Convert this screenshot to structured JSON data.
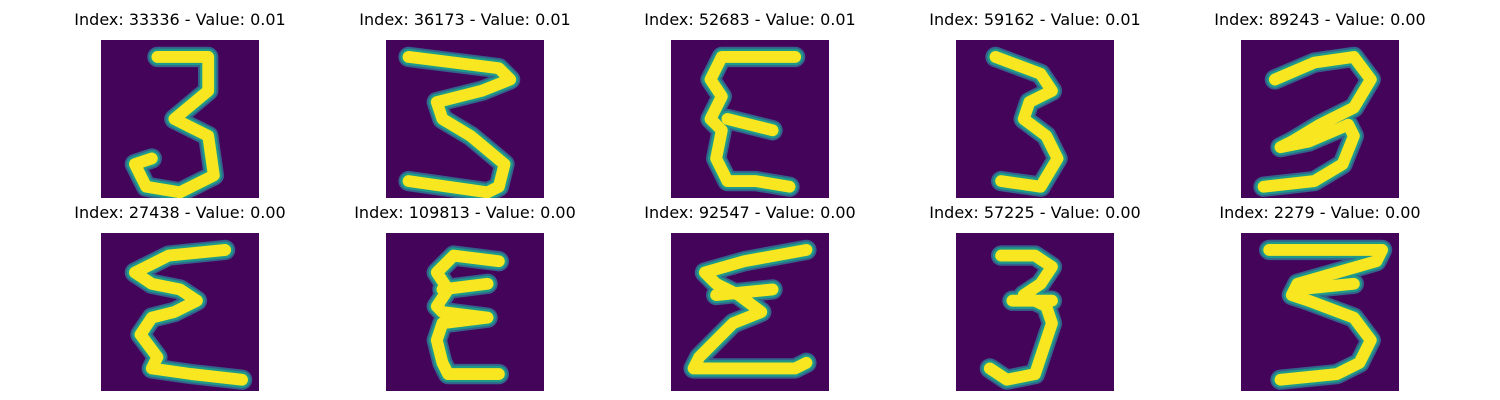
{
  "colors": {
    "background": "#44045a",
    "stroke_high": "#f8e621",
    "stroke_mid": "#1f9a8a",
    "stroke_edge": "#33638d"
  },
  "panels": [
    {
      "title": "Index: 33336 - Value: 0.01",
      "strokes": [
        [
          [
            10,
            3
          ],
          [
            19,
            3
          ],
          [
            19,
            9
          ],
          [
            13,
            14
          ],
          [
            19,
            17
          ],
          [
            20,
            24
          ],
          [
            14,
            27
          ],
          [
            8,
            26
          ],
          [
            6,
            22
          ],
          [
            9,
            21
          ]
        ]
      ]
    },
    {
      "title": "Index: 36173 - Value: 0.01",
      "strokes": [
        [
          [
            4,
            3
          ],
          [
            20,
            5
          ],
          [
            22,
            7
          ],
          [
            17,
            9
          ],
          [
            9,
            11
          ],
          [
            10,
            14
          ],
          [
            15,
            17
          ],
          [
            21,
            22
          ],
          [
            20,
            26
          ],
          [
            18,
            27
          ],
          [
            4,
            25
          ]
        ]
      ]
    },
    {
      "title": "Index: 52683 - Value: 0.01",
      "strokes": [
        [
          [
            22,
            3
          ],
          [
            9,
            3
          ],
          [
            7,
            7
          ],
          [
            9,
            10
          ],
          [
            7,
            14
          ],
          [
            9,
            16
          ],
          [
            8,
            21
          ],
          [
            10,
            25
          ],
          [
            15,
            25
          ],
          [
            21,
            26
          ]
        ],
        [
          [
            10,
            14
          ],
          [
            18,
            16
          ]
        ]
      ]
    },
    {
      "title": "Index: 59162 - Value: 0.01",
      "strokes": [
        [
          [
            7,
            3
          ],
          [
            15,
            6
          ],
          [
            17,
            9
          ],
          [
            13,
            11
          ],
          [
            12,
            14
          ],
          [
            16,
            17
          ],
          [
            18,
            21
          ],
          [
            15,
            26
          ],
          [
            8,
            25
          ]
        ]
      ]
    },
    {
      "title": "Index: 89243 - Value: 0.00",
      "strokes": [
        [
          [
            6,
            7
          ],
          [
            13,
            4
          ],
          [
            20,
            3
          ],
          [
            23,
            7
          ],
          [
            20,
            12
          ],
          [
            14,
            15
          ],
          [
            9,
            18
          ],
          [
            7,
            19
          ],
          [
            12,
            18
          ],
          [
            19,
            15
          ],
          [
            20,
            17
          ],
          [
            18,
            22
          ],
          [
            13,
            25
          ],
          [
            4,
            26
          ]
        ]
      ]
    },
    {
      "title": "Index: 27438 - Value: 0.00",
      "strokes": [
        [
          [
            22,
            3
          ],
          [
            12,
            4
          ],
          [
            6,
            7
          ],
          [
            9,
            9
          ],
          [
            14,
            10
          ],
          [
            17,
            12
          ],
          [
            13,
            14
          ],
          [
            9,
            15
          ],
          [
            7,
            18
          ],
          [
            10,
            22
          ],
          [
            9,
            24
          ],
          [
            16,
            25
          ],
          [
            25,
            26
          ]
        ]
      ]
    },
    {
      "title": "Index: 109813 - Value: 0.00",
      "strokes": [
        [
          [
            20,
            5
          ],
          [
            12,
            4
          ],
          [
            9,
            7
          ],
          [
            11,
            10
          ],
          [
            9,
            13
          ],
          [
            10,
            14
          ],
          [
            18,
            15
          ],
          [
            10,
            16
          ],
          [
            9,
            19
          ],
          [
            10,
            23
          ],
          [
            11,
            25
          ],
          [
            20,
            25
          ]
        ],
        [
          [
            10,
            10
          ],
          [
            18,
            9
          ]
        ]
      ]
    },
    {
      "title": "Index: 92547 - Value: 0.00",
      "strokes": [
        [
          [
            24,
            3
          ],
          [
            13,
            5
          ],
          [
            6,
            7
          ],
          [
            8,
            9
          ],
          [
            12,
            11
          ],
          [
            16,
            14
          ],
          [
            11,
            16
          ],
          [
            8,
            19
          ],
          [
            5,
            22
          ],
          [
            4,
            24
          ],
          [
            12,
            24
          ],
          [
            22,
            24
          ],
          [
            24,
            23
          ]
        ],
        [
          [
            8,
            11
          ],
          [
            18,
            10
          ]
        ]
      ]
    },
    {
      "title": "Index: 57225 - Value: 0.00",
      "strokes": [
        [
          [
            8,
            4
          ],
          [
            14,
            4
          ],
          [
            17,
            6
          ],
          [
            15,
            9
          ],
          [
            12,
            11
          ],
          [
            16,
            13
          ],
          [
            17,
            16
          ],
          [
            15,
            22
          ],
          [
            14,
            25
          ],
          [
            9,
            26
          ],
          [
            6,
            24
          ]
        ],
        [
          [
            10,
            12
          ],
          [
            17,
            12
          ]
        ]
      ]
    },
    {
      "title": "Index: 2279 - Value: 0.00",
      "strokes": [
        [
          [
            5,
            3
          ],
          [
            16,
            3
          ],
          [
            25,
            3
          ],
          [
            24,
            5
          ],
          [
            17,
            7
          ],
          [
            10,
            9
          ],
          [
            9,
            11
          ],
          [
            12,
            12
          ],
          [
            20,
            15
          ],
          [
            23,
            19
          ],
          [
            21,
            23
          ],
          [
            17,
            25
          ],
          [
            7,
            26
          ]
        ],
        [
          [
            10,
            10
          ],
          [
            20,
            9
          ]
        ]
      ]
    }
  ]
}
